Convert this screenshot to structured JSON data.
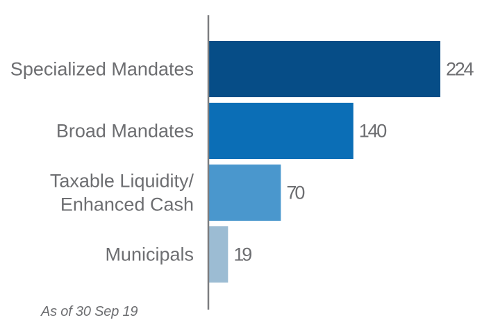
{
  "chart_data": {
    "type": "bar",
    "orientation": "horizontal",
    "categories": [
      [
        "Specialized Mandates"
      ],
      [
        "Broad Mandates"
      ],
      [
        "Taxable Liquidity/",
        "Enhanced Cash"
      ],
      [
        "Municipals"
      ]
    ],
    "values": [
      224,
      140,
      70,
      19
    ],
    "value_labels": [
      "224",
      "140",
      "70",
      "19"
    ],
    "colors": [
      "#064d87",
      "#0b6eb6",
      "#4a97cd",
      "#9cbcd3"
    ],
    "xlim": [
      0,
      224
    ],
    "grid": false,
    "legend": "none"
  },
  "footnote": "As of 30 Sep 19"
}
